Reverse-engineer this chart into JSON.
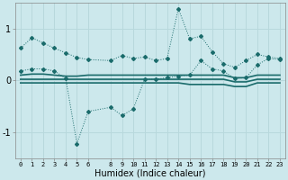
{
  "xlabel": "Humidex (Indice chaleur)",
  "bg_color": "#cce8ec",
  "grid_color": "#b8d8dc",
  "line_color": "#1a6b6b",
  "x_ticks": [
    0,
    1,
    2,
    3,
    4,
    5,
    6,
    8,
    9,
    10,
    11,
    12,
    13,
    14,
    15,
    16,
    17,
    18,
    19,
    20,
    21,
    22,
    23
  ],
  "ylim": [
    -1.5,
    1.5
  ],
  "xlim": [
    -0.5,
    23.5
  ],
  "yticks": [
    -1,
    0,
    1
  ],
  "series1_x": [
    0,
    1,
    2,
    3,
    4,
    5,
    6,
    8,
    9,
    10,
    11,
    12,
    13,
    14,
    15,
    16,
    17,
    18,
    19,
    20,
    21,
    22,
    23
  ],
  "series1_y": [
    0.62,
    0.82,
    0.72,
    0.62,
    0.53,
    0.44,
    0.4,
    0.38,
    0.48,
    0.42,
    0.45,
    0.38,
    0.42,
    1.38,
    0.8,
    0.85,
    0.55,
    0.32,
    0.25,
    0.38,
    0.5,
    0.45,
    0.42
  ],
  "series2_x": [
    0,
    1,
    2,
    3,
    4,
    5,
    6,
    8,
    9,
    10,
    11,
    12,
    13,
    14,
    15,
    16,
    17,
    18,
    19,
    20,
    21,
    22,
    23
  ],
  "series2_y": [
    0.18,
    0.22,
    0.22,
    0.18,
    0.04,
    -1.22,
    -0.6,
    -0.52,
    -0.68,
    -0.55,
    0.02,
    0.02,
    0.05,
    0.08,
    0.1,
    0.38,
    0.22,
    0.18,
    0.03,
    0.05,
    0.3,
    0.42,
    0.4
  ],
  "series3_x": [
    0,
    1,
    2,
    3,
    4,
    5,
    6,
    8,
    9,
    10,
    11,
    12,
    13,
    14,
    15,
    16,
    17,
    18,
    19,
    20,
    21,
    22,
    23
  ],
  "series3_y": [
    0.1,
    0.12,
    0.12,
    0.1,
    0.08,
    0.08,
    0.1,
    0.1,
    0.1,
    0.1,
    0.1,
    0.1,
    0.1,
    0.1,
    0.1,
    0.1,
    0.1,
    0.1,
    0.05,
    0.05,
    0.1,
    0.1,
    0.1
  ],
  "series4_x": [
    0,
    1,
    2,
    3,
    4,
    5,
    6,
    8,
    9,
    10,
    11,
    12,
    13,
    14,
    15,
    16,
    17,
    18,
    19,
    20,
    21,
    22,
    23
  ],
  "series4_y": [
    0.02,
    0.02,
    0.02,
    0.02,
    0.02,
    0.02,
    0.02,
    0.02,
    0.02,
    0.02,
    0.02,
    0.02,
    0.02,
    0.02,
    0.02,
    0.02,
    0.02,
    0.02,
    -0.03,
    -0.03,
    0.02,
    0.02,
    0.02
  ],
  "series5_x": [
    0,
    1,
    2,
    3,
    4,
    5,
    6,
    8,
    9,
    10,
    11,
    12,
    13,
    14,
    15,
    16,
    17,
    18,
    19,
    20,
    21,
    22,
    23
  ],
  "series5_y": [
    -0.05,
    -0.05,
    -0.05,
    -0.05,
    -0.05,
    -0.05,
    -0.05,
    -0.05,
    -0.05,
    -0.05,
    -0.05,
    -0.05,
    -0.05,
    -0.05,
    -0.08,
    -0.08,
    -0.08,
    -0.08,
    -0.12,
    -0.12,
    -0.05,
    -0.05,
    -0.05
  ]
}
